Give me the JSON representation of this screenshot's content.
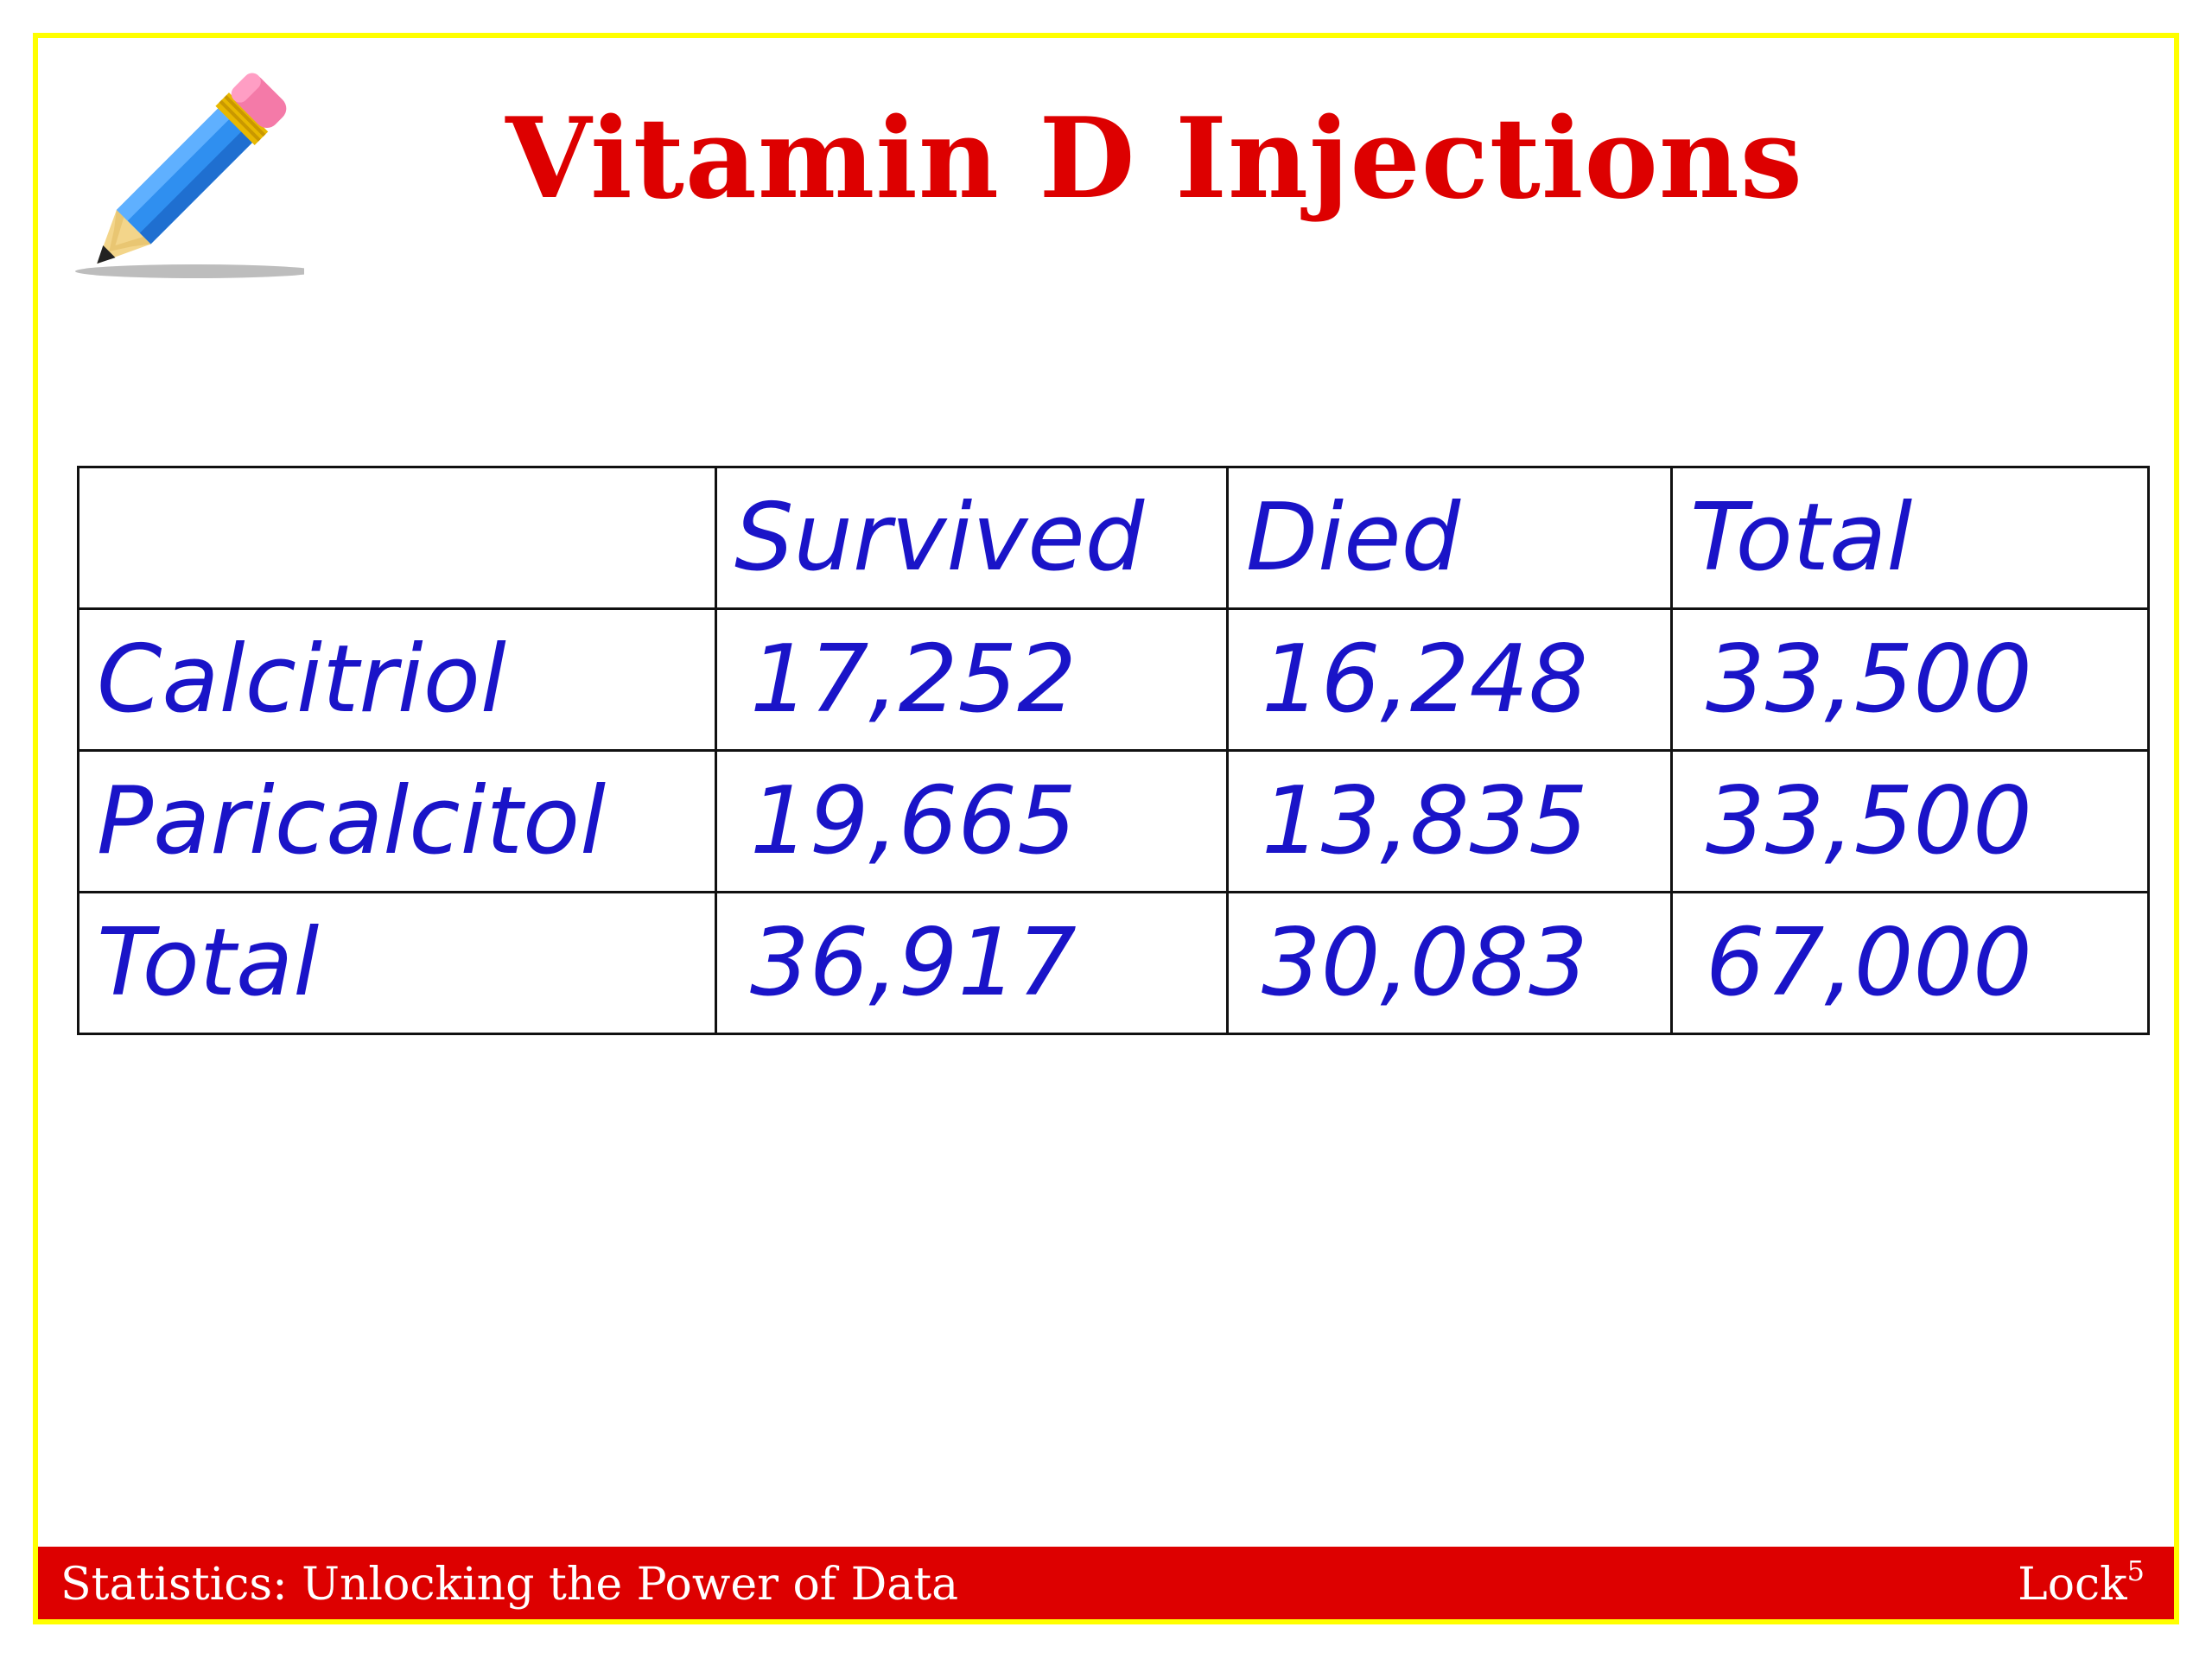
{
  "slide": {
    "title": "Vitamin D Injections"
  },
  "table": {
    "header": [
      "",
      "Survived",
      "Died",
      "Total"
    ],
    "rows": [
      {
        "label": "Calcitriol",
        "cells": [
          "17,252",
          "16,248",
          "33,500"
        ]
      },
      {
        "label": "Paricalcitol",
        "cells": [
          "19,665",
          "13,835",
          "33,500"
        ]
      },
      {
        "label": "Total",
        "cells": [
          "36,917",
          "30,083",
          "67,000"
        ]
      }
    ]
  },
  "footer": {
    "left_text": "Statistics: Unlocking the Power of Data",
    "right_text": "Lock",
    "right_superscript": "5"
  },
  "colors": {
    "title": "#dd0000",
    "border": "#ffff00",
    "handwriting": "#1a14c8",
    "footer_bg": "#dd0000"
  },
  "icons": {
    "decoration": "pencil-icon"
  }
}
